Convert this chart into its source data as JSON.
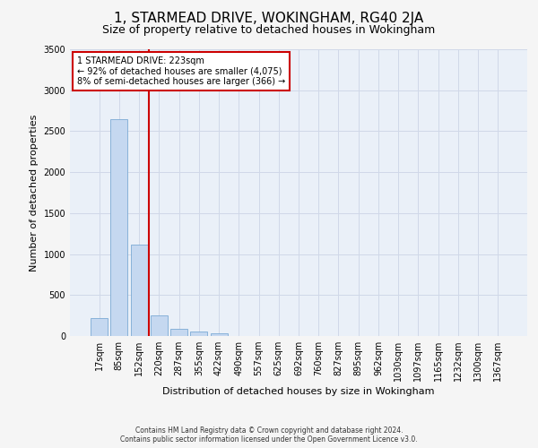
{
  "title": "1, STARMEAD DRIVE, WOKINGHAM, RG40 2JA",
  "subtitle": "Size of property relative to detached houses in Wokingham",
  "xlabel": "Distribution of detached houses by size in Wokingham",
  "ylabel": "Number of detached properties",
  "footer_line1": "Contains HM Land Registry data © Crown copyright and database right 2024.",
  "footer_line2": "Contains public sector information licensed under the Open Government Licence v3.0.",
  "categories": [
    "17sqm",
    "85sqm",
    "152sqm",
    "220sqm",
    "287sqm",
    "355sqm",
    "422sqm",
    "490sqm",
    "557sqm",
    "625sqm",
    "692sqm",
    "760sqm",
    "827sqm",
    "895sqm",
    "962sqm",
    "1030sqm",
    "1097sqm",
    "1165sqm",
    "1232sqm",
    "1300sqm",
    "1367sqm"
  ],
  "values": [
    220,
    2650,
    1120,
    255,
    90,
    55,
    30,
    0,
    0,
    0,
    0,
    0,
    0,
    0,
    0,
    0,
    0,
    0,
    0,
    0,
    0
  ],
  "bar_color": "#c5d8f0",
  "bar_edge_color": "#7baad4",
  "annotation_text_line1": "1 STARMEAD DRIVE: 223sqm",
  "annotation_text_line2": "← 92% of detached houses are smaller (4,075)",
  "annotation_text_line3": "8% of semi-detached houses are larger (366) →",
  "annotation_box_facecolor": "#ffffff",
  "annotation_box_edgecolor": "#cc0000",
  "vline_color": "#cc0000",
  "vline_pos": 2.5,
  "ylim_max": 3500,
  "yticks": [
    0,
    500,
    1000,
    1500,
    2000,
    2500,
    3000,
    3500
  ],
  "grid_color": "#d0d8e8",
  "bg_color": "#eaf0f8",
  "fig_facecolor": "#f5f5f5",
  "title_fontsize": 11,
  "subtitle_fontsize": 9,
  "tick_fontsize": 7,
  "ylabel_fontsize": 8,
  "xlabel_fontsize": 8,
  "footer_fontsize": 5.5,
  "annotation_fontsize": 7
}
